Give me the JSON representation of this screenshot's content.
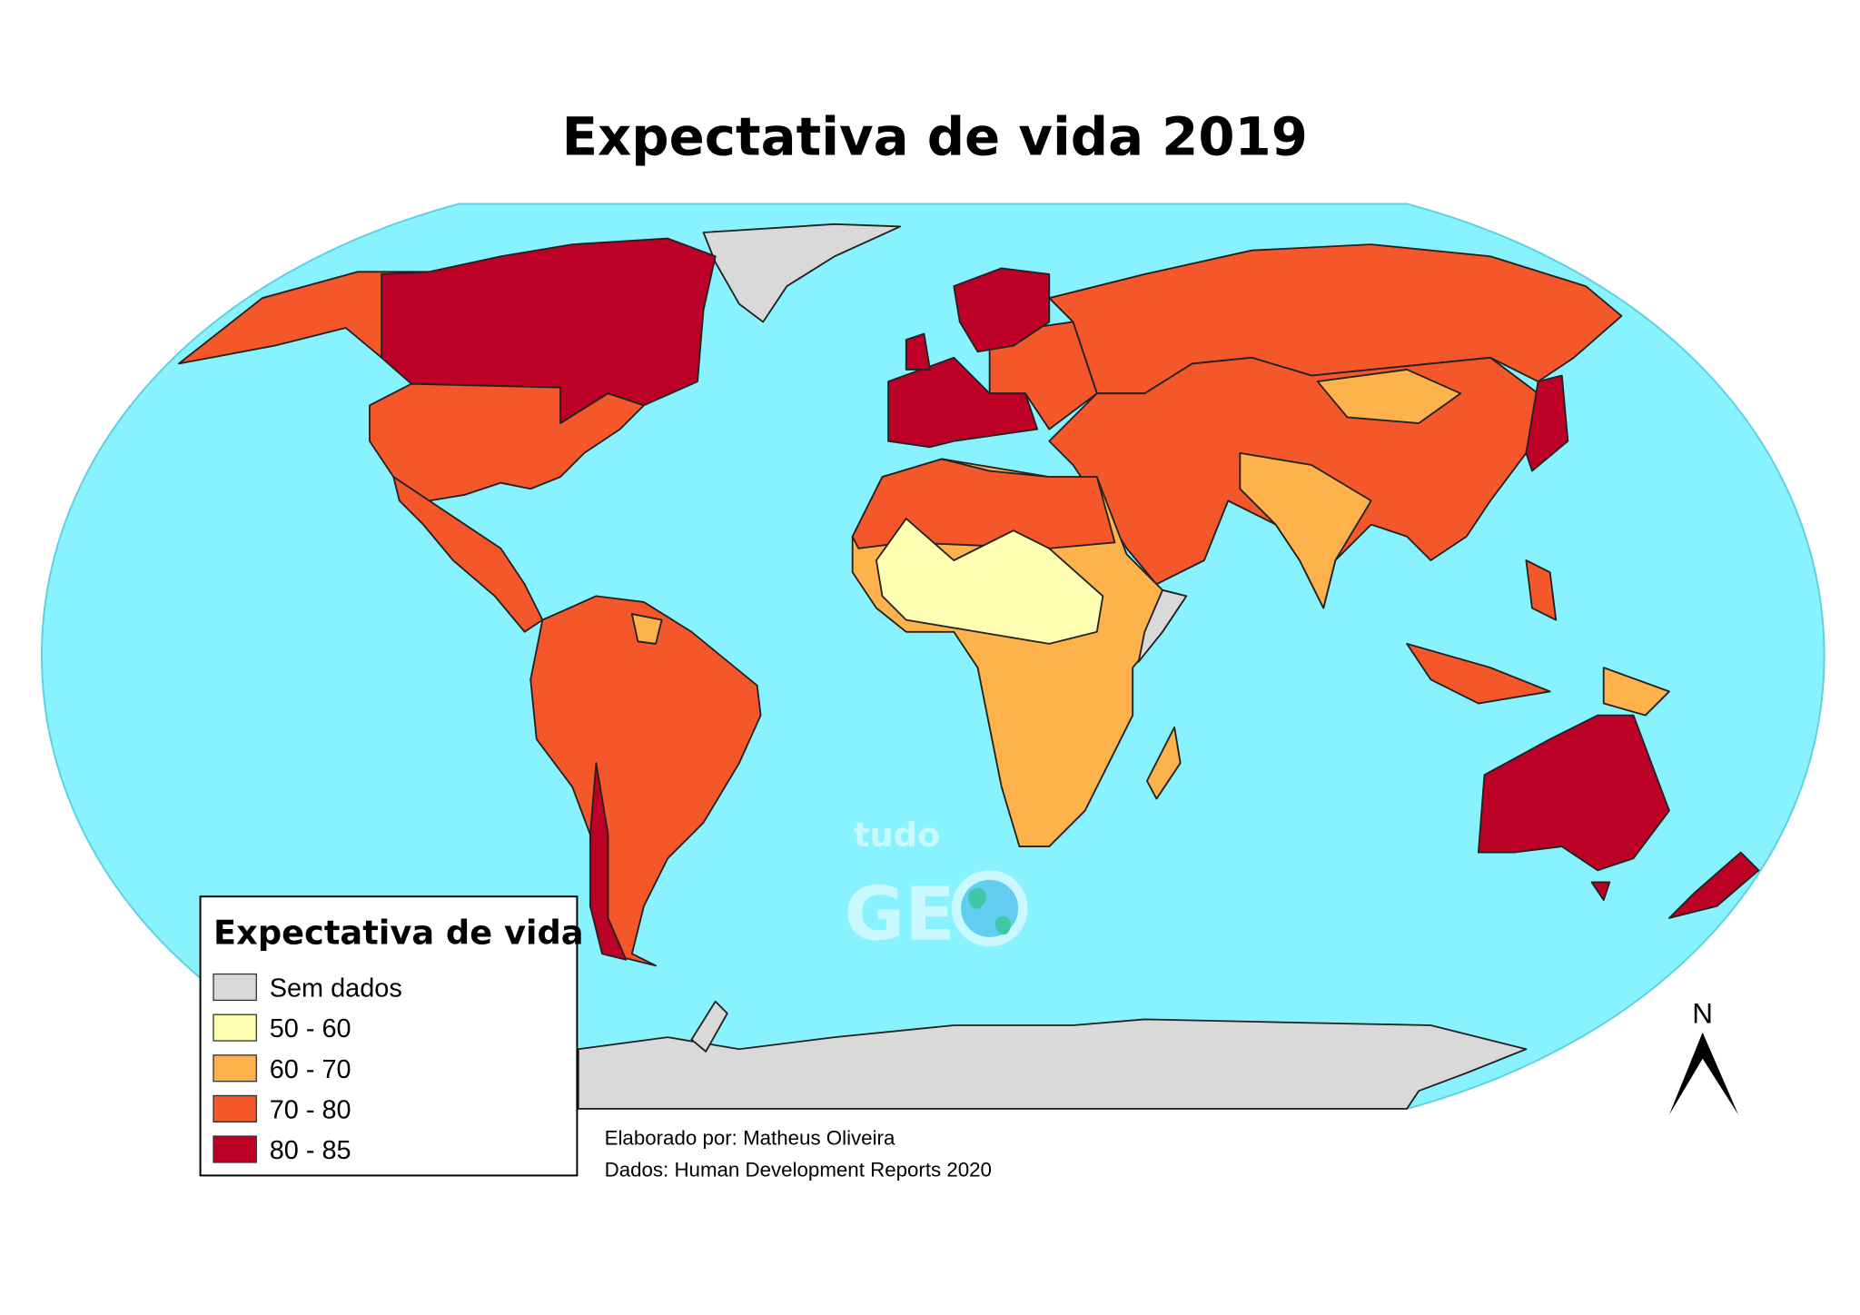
{
  "title": "Expectativa de vida 2019",
  "legend": {
    "title": "Expectativa de vida",
    "items": [
      {
        "label": "Sem dados",
        "color": "#D9D9D9"
      },
      {
        "label": "50 - 60",
        "color": "#FFFFB2"
      },
      {
        "label": "60 - 70",
        "color": "#FEB24C"
      },
      {
        "label": "70 - 80",
        "color": "#F4572A"
      },
      {
        "label": "80 - 85",
        "color": "#BD0026"
      }
    ]
  },
  "credits": {
    "author": "Elaborado por: Matheus Oliveira",
    "source": "Dados: Human Development Reports 2020"
  },
  "north_arrow": {
    "label": "N"
  },
  "watermark": {
    "line1": "tudo",
    "line2": "GE"
  },
  "colors": {
    "ocean": "#88F2FE",
    "no_data": "#D9D9D9",
    "c50_60": "#FFFFB2",
    "c60_70": "#FEB24C",
    "c70_80": "#F4572A",
    "c80_85": "#BD0026"
  }
}
